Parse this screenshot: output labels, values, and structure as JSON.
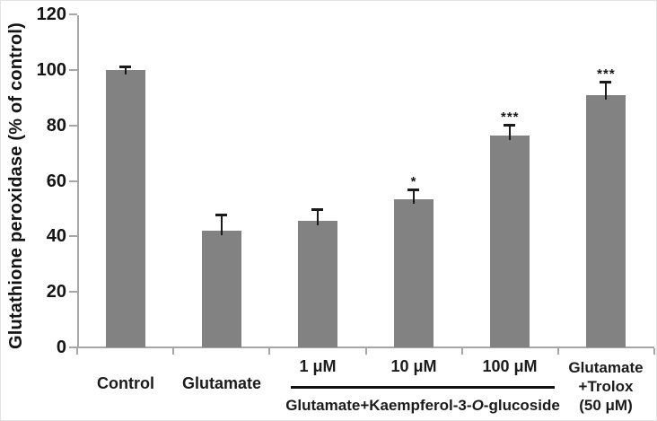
{
  "figure": {
    "group_label_pre": "Glutamate+Kaempferol-3-",
    "group_label_italic": "O",
    "group_label_post": "-glucoside",
    "trolox_lines": [
      "Glutamate",
      "+Trolox",
      "(50 μM)"
    ]
  },
  "chart_data": {
    "type": "bar",
    "title": "",
    "xlabel": "",
    "ylabel": "Glutathione peroxidase (% of control)",
    "ylim": [
      0,
      120
    ],
    "yticks": [
      0,
      20,
      40,
      60,
      80,
      100,
      120
    ],
    "grid": false,
    "legend": false,
    "bar_color": "#828282",
    "error_bar_color": "#1a1a1a",
    "axis_color": "#a6a6a6",
    "categories": [
      "Control",
      "Glutamate",
      "1 μM",
      "10 μM",
      "100 μM",
      "Glutamate +Trolox (50 μM)"
    ],
    "values": [
      100,
      42,
      45.5,
      53.5,
      76.5,
      91
    ],
    "errors": [
      1,
      5.5,
      4,
      3,
      3.5,
      4.5
    ],
    "significance": [
      "",
      "",
      "",
      "*",
      "***",
      "***"
    ],
    "group_annotation": {
      "label": "Glutamate+Kaempferol-3-O-glucoside",
      "start_index": 2,
      "end_index": 4
    }
  }
}
